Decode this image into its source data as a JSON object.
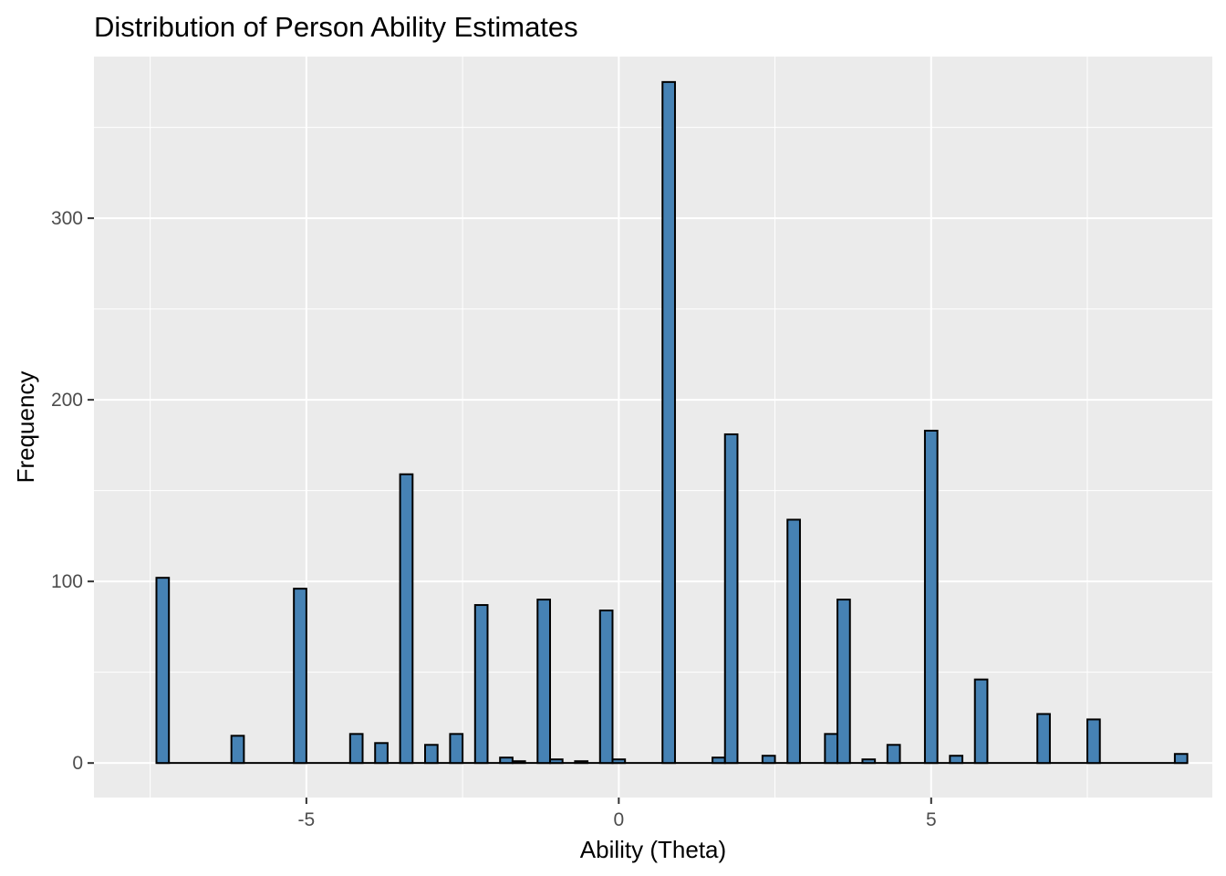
{
  "chart_data": {
    "type": "bar",
    "title": "Distribution of Person Ability Estimates",
    "xlabel": "Ability (Theta)",
    "ylabel": "Frequency",
    "xlim": [
      -8.4,
      9.5
    ],
    "ylim": [
      -19,
      389
    ],
    "x_ticks": [
      -5,
      0,
      5
    ],
    "x_tick_labels": [
      "-5",
      "0",
      "5"
    ],
    "y_ticks": [
      0,
      100,
      200,
      300
    ],
    "y_tick_labels": [
      "0",
      "100",
      "200",
      "300"
    ],
    "bin_width": 0.2,
    "grid": true,
    "colors": {
      "panel": "#ebebeb",
      "bar_fill": "#4682b4",
      "bar_edge": "#000000",
      "grid": "#ffffff"
    },
    "bars": [
      {
        "x": -7.3,
        "value": 102
      },
      {
        "x": -6.1,
        "value": 15
      },
      {
        "x": -5.1,
        "value": 96
      },
      {
        "x": -4.2,
        "value": 16
      },
      {
        "x": -3.8,
        "value": 11
      },
      {
        "x": -3.4,
        "value": 159
      },
      {
        "x": -3.0,
        "value": 10
      },
      {
        "x": -2.6,
        "value": 16
      },
      {
        "x": -2.2,
        "value": 87
      },
      {
        "x": -1.8,
        "value": 3
      },
      {
        "x": -1.6,
        "value": 1
      },
      {
        "x": -1.2,
        "value": 90
      },
      {
        "x": -1.0,
        "value": 2
      },
      {
        "x": -0.6,
        "value": 1
      },
      {
        "x": -0.2,
        "value": 84
      },
      {
        "x": 0.0,
        "value": 2
      },
      {
        "x": 0.8,
        "value": 375
      },
      {
        "x": 1.6,
        "value": 3
      },
      {
        "x": 1.8,
        "value": 181
      },
      {
        "x": 2.4,
        "value": 4
      },
      {
        "x": 2.8,
        "value": 134
      },
      {
        "x": 3.4,
        "value": 16
      },
      {
        "x": 3.6,
        "value": 90
      },
      {
        "x": 4.0,
        "value": 2
      },
      {
        "x": 4.4,
        "value": 10
      },
      {
        "x": 5.0,
        "value": 183
      },
      {
        "x": 5.4,
        "value": 4
      },
      {
        "x": 5.8,
        "value": 46
      },
      {
        "x": 6.8,
        "value": 27
      },
      {
        "x": 7.6,
        "value": 24
      },
      {
        "x": 9.0,
        "value": 5
      }
    ]
  }
}
